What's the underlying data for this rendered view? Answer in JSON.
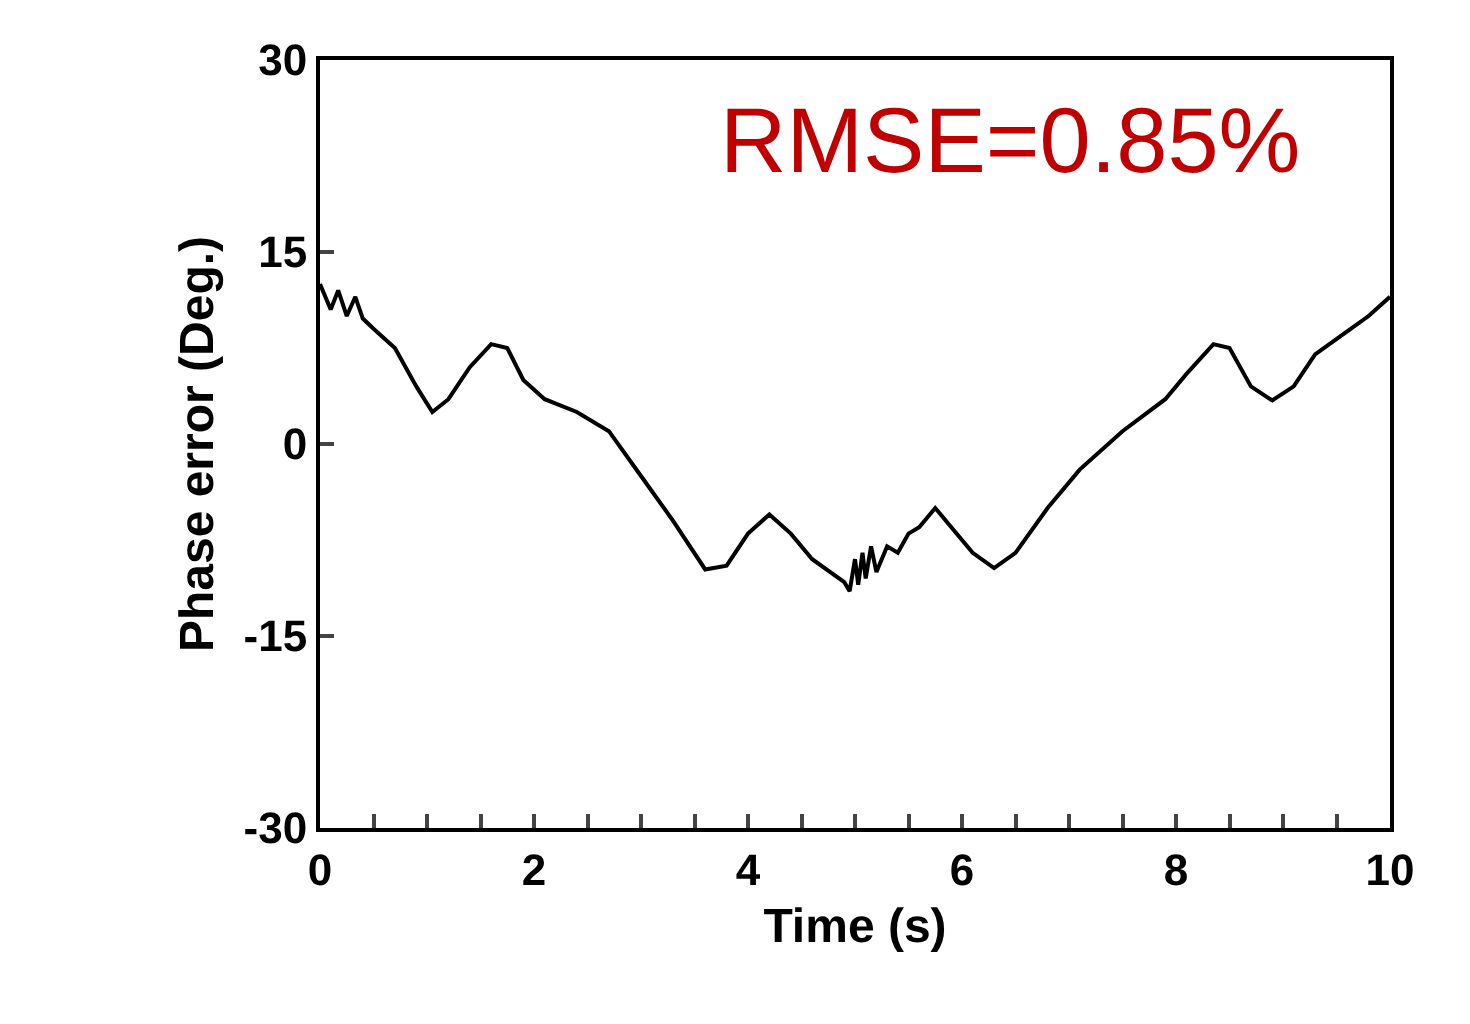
{
  "chart_data": {
    "type": "line",
    "xlabel": "Time (s)",
    "ylabel": "Phase error (Deg.)",
    "annotations": [
      "RMSE=0.85%"
    ],
    "x": [
      0,
      0.1,
      0.17,
      0.25,
      0.33,
      0.4,
      0.5,
      0.7,
      0.9,
      1.05,
      1.2,
      1.4,
      1.6,
      1.75,
      1.9,
      2.1,
      2.4,
      2.7,
      3.0,
      3.3,
      3.6,
      3.8,
      4.0,
      4.2,
      4.4,
      4.6,
      4.9,
      4.95,
      5.0,
      5.03,
      5.07,
      5.1,
      5.15,
      5.2,
      5.3,
      5.4,
      5.5,
      5.6,
      5.75,
      5.9,
      6.1,
      6.3,
      6.5,
      6.8,
      7.1,
      7.5,
      7.9,
      8.1,
      8.35,
      8.5,
      8.7,
      8.9,
      9.1,
      9.3,
      9.6,
      9.8,
      10
    ],
    "series": [
      {
        "color": "#000000",
        "values": [
          12.5,
          10.5,
          12,
          10,
          11.5,
          9.8,
          9,
          7.5,
          4.5,
          2.5,
          3.5,
          6,
          7.8,
          7.5,
          5,
          3.5,
          2.5,
          1,
          -2.5,
          -6,
          -9.8,
          -9.5,
          -7,
          -5.5,
          -7,
          -9,
          -10.8,
          -11.5,
          -9,
          -11,
          -8.5,
          -10.5,
          -8,
          -10,
          -8,
          -8.5,
          -7,
          -6.5,
          -5,
          -6.5,
          -8.5,
          -9.7,
          -8.5,
          -5,
          -2,
          1,
          3.5,
          5.5,
          7.8,
          7.5,
          4.5,
          3.4,
          4.5,
          7,
          8.8,
          10,
          11.5
        ]
      }
    ],
    "xlim": [
      0,
      10
    ],
    "ylim": [
      -30,
      30
    ],
    "xticks": [
      0,
      {
        "value": 0.5,
        "label": null
      },
      {
        "value": 1,
        "label": null
      },
      {
        "value": 1.5,
        "label": null
      },
      2,
      {
        "value": 2.5,
        "label": null
      },
      {
        "value": 3,
        "label": null
      },
      {
        "value": 3.5,
        "label": null
      },
      4,
      {
        "value": 4.5,
        "label": null
      },
      {
        "value": 5,
        "label": null
      },
      {
        "value": 5.5,
        "label": null
      },
      6,
      {
        "value": 6.5,
        "label": null
      },
      {
        "value": 7,
        "label": null
      },
      {
        "value": 7.5,
        "label": null
      },
      8,
      {
        "value": 8.5,
        "label": null
      },
      {
        "value": 9,
        "label": null
      },
      {
        "value": 9.5,
        "label": null
      },
      10
    ],
    "yticks": [
      -30,
      -15,
      0,
      15,
      30
    ]
  }
}
